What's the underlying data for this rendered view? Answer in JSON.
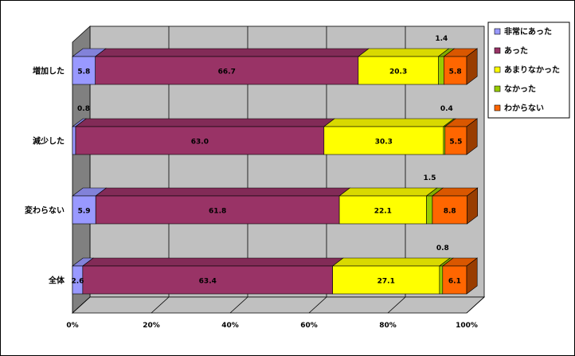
{
  "chart_data": {
    "type": "bar",
    "orientation": "horizontal",
    "stacked": true,
    "percent": true,
    "three_d": true,
    "grid": true,
    "legend_position": "right",
    "categories": [
      "増加した",
      "減少した",
      "変わらない",
      "全体"
    ],
    "series": [
      {
        "name": "非常にあった",
        "color": "#9999FF",
        "values": [
          5.8,
          0.8,
          5.9,
          2.6
        ]
      },
      {
        "name": "あった",
        "color": "#993366",
        "values": [
          66.7,
          63.0,
          61.8,
          63.4
        ]
      },
      {
        "name": "あまりなかった",
        "color": "#FFFF00",
        "values": [
          20.3,
          30.3,
          22.1,
          27.1
        ]
      },
      {
        "name": "なかった",
        "color": "#99CC00",
        "values": [
          1.4,
          0.4,
          1.5,
          0.8
        ]
      },
      {
        "name": "わからない",
        "color": "#FF6600",
        "values": [
          5.8,
          5.5,
          8.8,
          6.1
        ]
      }
    ],
    "xlim": [
      0,
      100
    ],
    "xticks": [
      "0%",
      "20%",
      "40%",
      "60%",
      "80%",
      "100%"
    ]
  }
}
